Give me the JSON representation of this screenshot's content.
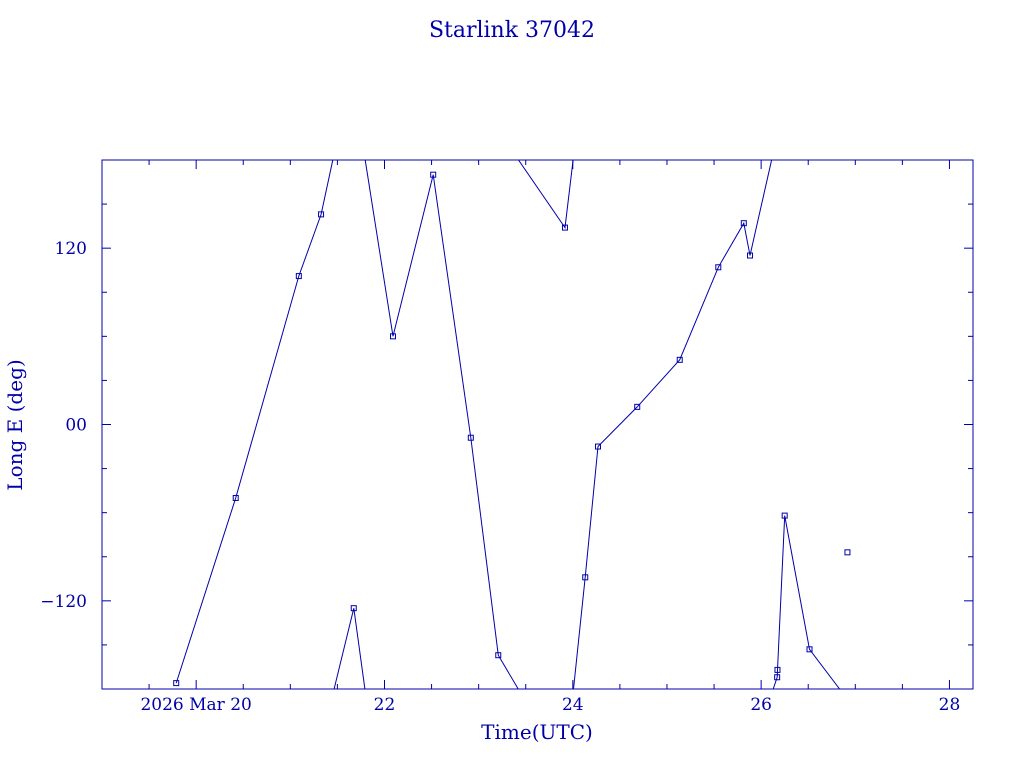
{
  "colors": {
    "ink": "#0000aa",
    "background": "#ffffff"
  },
  "chart_data": {
    "type": "line",
    "title": "Starlink 37042",
    "xlabel": "Time(UTC)",
    "ylabel": "Long E (deg)",
    "xlim": [
      "2026-03-19T00:00",
      "2026-03-28T06:00"
    ],
    "ylim": [
      -180,
      180
    ],
    "grid": false,
    "x_ticks": [
      {
        "x": "2026-03-20T00:00",
        "label": "2026 Mar 20"
      },
      {
        "x": "2026-03-22T00:00",
        "label": "22"
      },
      {
        "x": "2026-03-24T00:00",
        "label": "24"
      },
      {
        "x": "2026-03-26T00:00",
        "label": "26"
      },
      {
        "x": "2026-03-28T00:00",
        "label": "28"
      }
    ],
    "y_ticks": [
      {
        "y": 120,
        "label": "120"
      },
      {
        "y": 0,
        "label": "00"
      },
      {
        "y": -120,
        "label": "−120"
      }
    ],
    "series": [
      {
        "points": [
          {
            "x": "2026-03-19T18:55",
            "y": -176
          },
          {
            "x": "2026-03-20T10:05",
            "y": -50
          },
          {
            "x": "2026-03-21T02:10",
            "y": 101
          },
          {
            "x": "2026-03-21T07:50",
            "y": 143
          },
          {
            "x": "2026-03-21T10:50",
            "y": 180
          },
          {
            "x": "2026-03-21T11:10",
            "y": -180
          },
          {
            "x": "2026-03-21T16:10",
            "y": -125
          },
          {
            "x": "2026-03-21T19:00",
            "y": -180
          },
          {
            "x": "2026-03-21T19:05",
            "y": 180
          },
          {
            "x": "2026-03-22T02:10",
            "y": 60
          },
          {
            "x": "2026-03-22T12:25",
            "y": 170
          },
          {
            "x": "2026-03-22T22:00",
            "y": -9
          },
          {
            "x": "2026-03-23T05:00",
            "y": -157
          },
          {
            "x": "2026-03-23T10:05",
            "y": -180
          },
          {
            "x": "2026-03-23T10:10",
            "y": 180
          },
          {
            "x": "2026-03-23T22:00",
            "y": 134
          },
          {
            "x": "2026-03-24T00:05",
            "y": 180
          },
          {
            "x": "2026-03-24T00:10",
            "y": -180
          },
          {
            "x": "2026-03-24T03:10",
            "y": -104
          },
          {
            "x": "2026-03-24T06:25",
            "y": -15
          },
          {
            "x": "2026-03-24T16:25",
            "y": 12
          },
          {
            "x": "2026-03-25T03:15",
            "y": 44
          },
          {
            "x": "2026-03-25T13:05",
            "y": 107
          },
          {
            "x": "2026-03-25T19:35",
            "y": 137
          },
          {
            "x": "2026-03-25T21:10",
            "y": 115
          },
          {
            "x": "2026-03-26T02:40",
            "y": 180
          },
          {
            "x": "2026-03-26T03:05",
            "y": -180
          },
          {
            "x": "2026-03-26T04:05",
            "y": -172
          },
          {
            "x": "2026-03-26T04:10",
            "y": -167
          },
          {
            "x": "2026-03-26T06:00",
            "y": -62
          },
          {
            "x": "2026-03-26T12:20",
            "y": -153
          },
          {
            "x": "2026-03-26T20:00",
            "y": -180
          },
          {
            "x": "2026-03-26T20:05",
            "y": 180
          },
          {
            "x": "2026-03-26T22:00",
            "y": -87
          }
        ]
      }
    ]
  }
}
